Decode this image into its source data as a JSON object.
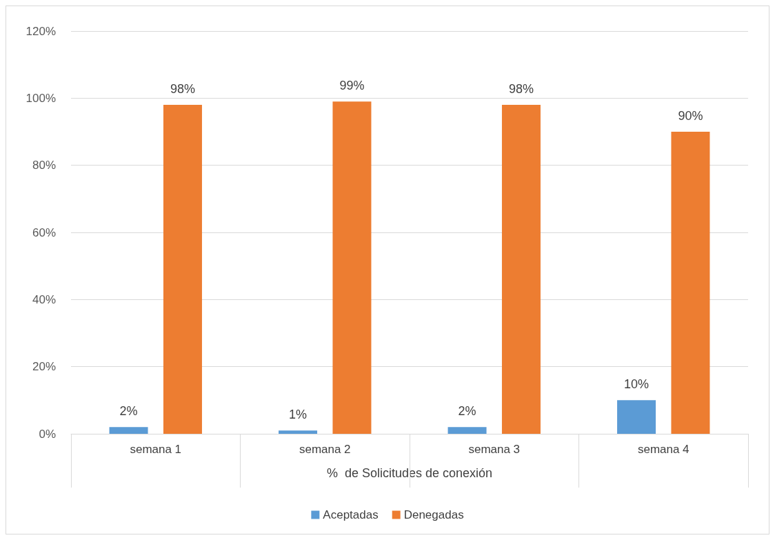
{
  "chart_data": {
    "type": "bar",
    "xlabel": "%  de Solicitudes de conexión",
    "categories": [
      "semana 1",
      "semana 2",
      "semana 3",
      "semana 4"
    ],
    "series": [
      {
        "name": "Aceptadas",
        "color": "#5b9bd5",
        "values": [
          2,
          1,
          2,
          10
        ],
        "value_labels": [
          "2%",
          "1%",
          "2%",
          "10%"
        ]
      },
      {
        "name": "Denegadas",
        "color": "#ed7d31",
        "values": [
          98,
          99,
          98,
          90
        ],
        "value_labels": [
          "98%",
          "99%",
          "98%",
          "90%"
        ]
      }
    ],
    "ylim": [
      0,
      120
    ],
    "yticks": [
      {
        "value": 0,
        "label": "0%"
      },
      {
        "value": 20,
        "label": "20%"
      },
      {
        "value": 40,
        "label": "40%"
      },
      {
        "value": 60,
        "label": "60%"
      },
      {
        "value": 80,
        "label": "80%"
      },
      {
        "value": 100,
        "label": "100%"
      },
      {
        "value": 120,
        "label": "120%"
      }
    ],
    "grid": "y",
    "legend": "bottom"
  }
}
